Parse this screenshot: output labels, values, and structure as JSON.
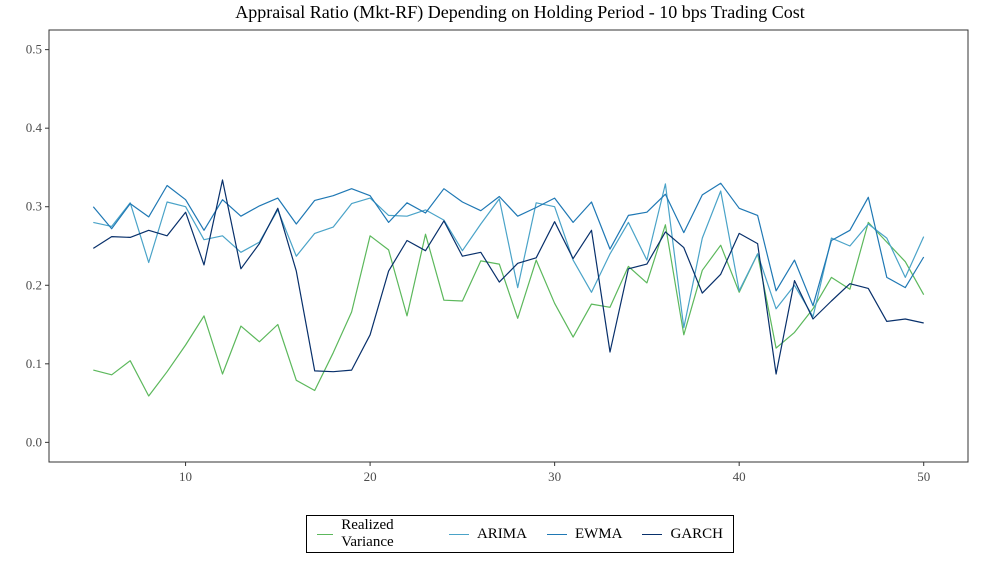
{
  "chart_data": {
    "type": "line",
    "title": "Appraisal Ratio (Mkt-RF) Depending on Holding Period - 10 bps Trading Cost",
    "xlabel": "",
    "ylabel": "",
    "xlim": [
      2.6,
      52.4
    ],
    "ylim": [
      -0.025,
      0.525
    ],
    "x_ticks": [
      10,
      20,
      30,
      40,
      50
    ],
    "y_ticks": [
      0.0,
      0.1,
      0.2,
      0.3,
      0.4,
      0.5
    ],
    "x_tick_labels": [
      "10",
      "20",
      "30",
      "40",
      "50"
    ],
    "y_tick_labels": [
      "0.0",
      "0.1",
      "0.2",
      "0.3",
      "0.4",
      "0.5"
    ],
    "grid": false,
    "legend_position": "bottom",
    "x": [
      5,
      6,
      7,
      8,
      9,
      10,
      11,
      12,
      13,
      14,
      15,
      16,
      17,
      18,
      19,
      20,
      21,
      22,
      23,
      24,
      25,
      26,
      27,
      28,
      29,
      30,
      31,
      32,
      33,
      34,
      35,
      36,
      37,
      38,
      39,
      40,
      41,
      42,
      43,
      44,
      45,
      46,
      47,
      48,
      49,
      50
    ],
    "series": [
      {
        "name": "Realized Variance",
        "color": "#5cb85c",
        "values": [
          0.092,
          0.086,
          0.104,
          0.059,
          0.09,
          0.124,
          0.161,
          0.087,
          0.148,
          0.128,
          0.15,
          0.079,
          0.066,
          0.114,
          0.166,
          0.263,
          0.245,
          0.161,
          0.265,
          0.181,
          0.18,
          0.231,
          0.227,
          0.158,
          0.232,
          0.177,
          0.134,
          0.176,
          0.172,
          0.224,
          0.203,
          0.277,
          0.137,
          0.219,
          0.251,
          0.191,
          0.24,
          0.12,
          0.14,
          0.17,
          0.21,
          0.195,
          0.28,
          0.255,
          0.23,
          0.188
        ]
      },
      {
        "name": "ARIMA",
        "color": "#4aa3c8",
        "values": [
          0.28,
          0.275,
          0.305,
          0.229,
          0.306,
          0.3,
          0.258,
          0.263,
          0.242,
          0.255,
          0.296,
          0.237,
          0.266,
          0.274,
          0.304,
          0.311,
          0.289,
          0.288,
          0.296,
          0.283,
          0.244,
          0.278,
          0.31,
          0.197,
          0.305,
          0.3,
          0.232,
          0.191,
          0.24,
          0.28,
          0.232,
          0.329,
          0.146,
          0.26,
          0.32,
          0.193,
          0.24,
          0.17,
          0.2,
          0.16,
          0.26,
          0.25,
          0.278,
          0.26,
          0.21,
          0.262
        ]
      },
      {
        "name": "EWMA",
        "color": "#1f78b4",
        "values": [
          0.3,
          0.272,
          0.304,
          0.287,
          0.327,
          0.309,
          0.27,
          0.309,
          0.288,
          0.301,
          0.311,
          0.278,
          0.308,
          0.314,
          0.323,
          0.314,
          0.28,
          0.305,
          0.292,
          0.323,
          0.306,
          0.295,
          0.313,
          0.288,
          0.299,
          0.311,
          0.28,
          0.306,
          0.246,
          0.289,
          0.293,
          0.316,
          0.267,
          0.315,
          0.33,
          0.298,
          0.289,
          0.193,
          0.232,
          0.174,
          0.257,
          0.27,
          0.312,
          0.21,
          0.197,
          0.236
        ]
      },
      {
        "name": "GARCH",
        "color": "#08306b",
        "values": [
          0.247,
          0.262,
          0.261,
          0.27,
          0.263,
          0.293,
          0.226,
          0.334,
          0.221,
          0.253,
          0.298,
          0.218,
          0.091,
          0.09,
          0.092,
          0.137,
          0.218,
          0.257,
          0.244,
          0.282,
          0.237,
          0.242,
          0.204,
          0.228,
          0.235,
          0.281,
          0.234,
          0.27,
          0.115,
          0.221,
          0.227,
          0.268,
          0.248,
          0.19,
          0.214,
          0.266,
          0.253,
          0.087,
          0.206,
          0.157,
          0.18,
          0.202,
          0.196,
          0.154,
          0.157,
          0.152
        ]
      }
    ]
  }
}
